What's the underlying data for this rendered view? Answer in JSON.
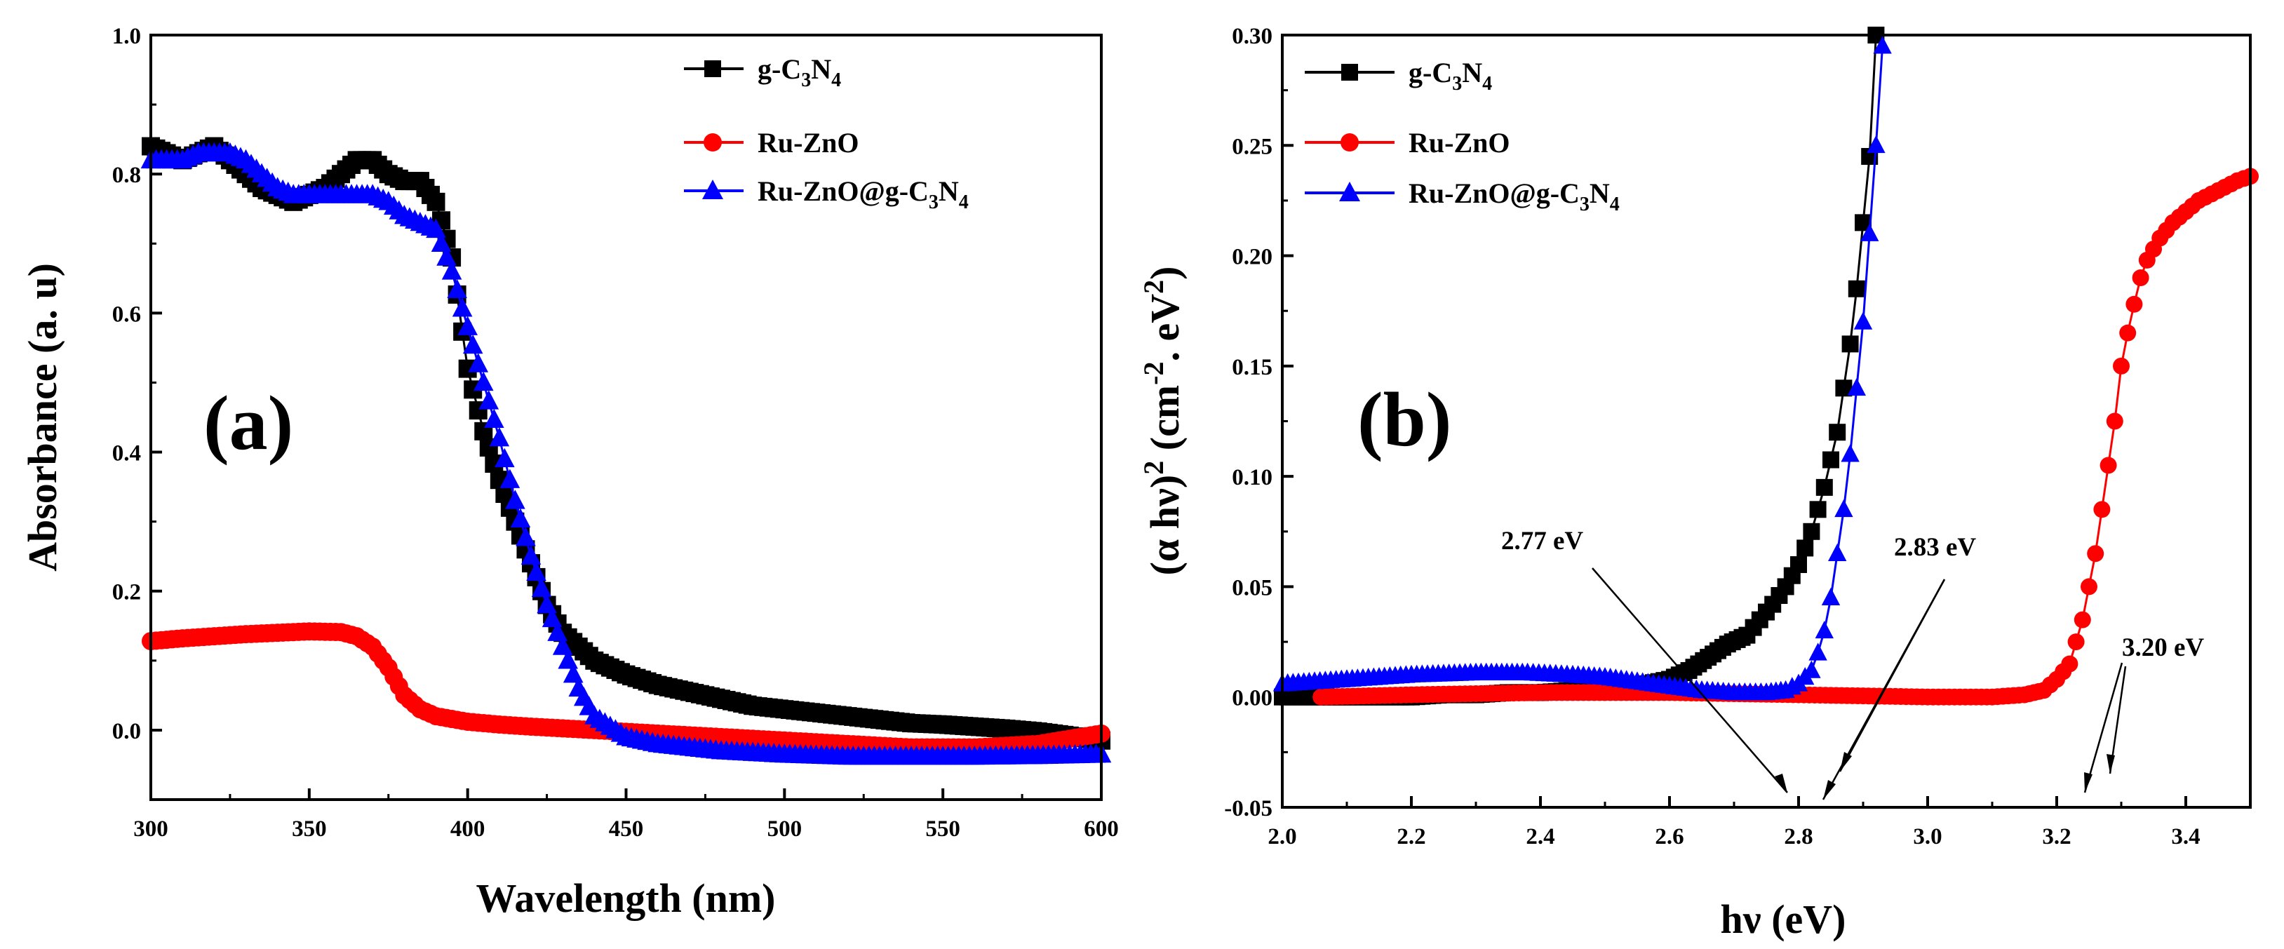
{
  "chart_data": [
    {
      "type": "scatter",
      "panel_label": "(a)",
      "xlabel": "Wavelength (nm)",
      "ylabel": "Absorbance (a. u)",
      "xlim": [
        300,
        600
      ],
      "ylim": [
        -0.1,
        1.0
      ],
      "xticks": [
        300,
        350,
        400,
        450,
        500,
        550,
        600
      ],
      "yticks": [
        -0.0001,
        0.2,
        0.4,
        0.6,
        0.8,
        1.0
      ],
      "ytick_labels": [
        "0.0",
        "0.2",
        "0.4",
        "0.6",
        "0.8",
        "1.0"
      ],
      "xtick_labels": [
        "300",
        "350",
        "400",
        "450",
        "500",
        "550",
        "600"
      ],
      "legend_position": "top-right",
      "series": [
        {
          "name": "g-C3N4",
          "legend": {
            "base": "g-C",
            "sub1": "3",
            "mid": "N",
            "sub2": "4"
          },
          "color": "#000000",
          "marker": "square",
          "x": [
            300,
            305,
            310,
            315,
            320,
            325,
            330,
            335,
            340,
            345,
            350,
            355,
            360,
            365,
            370,
            375,
            380,
            385,
            390,
            395,
            400,
            405,
            410,
            415,
            420,
            425,
            430,
            435,
            440,
            450,
            460,
            470,
            480,
            490,
            500,
            510,
            520,
            530,
            540,
            550,
            560,
            570,
            580,
            590,
            600
          ],
          "y": [
            0.84,
            0.83,
            0.82,
            0.83,
            0.84,
            0.82,
            0.8,
            0.78,
            0.77,
            0.76,
            0.77,
            0.78,
            0.8,
            0.82,
            0.82,
            0.8,
            0.79,
            0.79,
            0.76,
            0.68,
            0.52,
            0.43,
            0.36,
            0.3,
            0.24,
            0.18,
            0.14,
            0.12,
            0.1,
            0.08,
            0.065,
            0.055,
            0.045,
            0.035,
            0.03,
            0.025,
            0.02,
            0.015,
            0.01,
            0.008,
            0.005,
            0.002,
            -0.002,
            -0.008,
            -0.015
          ]
        },
        {
          "name": "Ru-ZnO",
          "legend": {
            "base": "Ru-ZnO",
            "sub1": "",
            "mid": "",
            "sub2": ""
          },
          "color": "#ff0000",
          "marker": "circle",
          "x": [
            300,
            310,
            320,
            330,
            340,
            350,
            360,
            365,
            370,
            375,
            380,
            385,
            390,
            400,
            410,
            420,
            440,
            460,
            480,
            500,
            520,
            540,
            560,
            580,
            600
          ],
          "y": [
            0.128,
            0.132,
            0.135,
            0.138,
            0.14,
            0.142,
            0.141,
            0.135,
            0.12,
            0.09,
            0.05,
            0.03,
            0.02,
            0.012,
            0.008,
            0.005,
            0.0,
            -0.005,
            -0.01,
            -0.015,
            -0.02,
            -0.025,
            -0.025,
            -0.02,
            -0.005
          ]
        },
        {
          "name": "Ru-ZnO@g-C3N4",
          "legend": {
            "base": "Ru-ZnO@g-C",
            "sub1": "3",
            "mid": "N",
            "sub2": "4"
          },
          "color": "#0000ff",
          "marker": "triangle",
          "x": [
            300,
            305,
            310,
            315,
            320,
            325,
            330,
            335,
            340,
            345,
            350,
            355,
            360,
            365,
            370,
            375,
            380,
            385,
            390,
            395,
            400,
            405,
            410,
            415,
            420,
            425,
            430,
            435,
            440,
            445,
            450,
            460,
            470,
            480,
            500,
            520,
            540,
            560,
            580,
            600
          ],
          "y": [
            0.82,
            0.82,
            0.82,
            0.83,
            0.83,
            0.83,
            0.82,
            0.8,
            0.78,
            0.77,
            0.77,
            0.77,
            0.77,
            0.77,
            0.77,
            0.76,
            0.74,
            0.73,
            0.72,
            0.66,
            0.58,
            0.5,
            0.42,
            0.33,
            0.25,
            0.18,
            0.12,
            0.06,
            0.02,
            0.005,
            -0.01,
            -0.02,
            -0.025,
            -0.03,
            -0.035,
            -0.038,
            -0.038,
            -0.038,
            -0.037,
            -0.035
          ]
        }
      ]
    },
    {
      "type": "scatter",
      "panel_label": "(b)",
      "xlabel": "hν (eV)",
      "ylabel": {
        "pre": "(α hν)",
        "sup1": "2",
        "mid": " (cm",
        "sup2": "-2",
        "mid2": ". eV",
        "sup3": "2",
        "post": ")"
      },
      "xlim": [
        2.0,
        3.5
      ],
      "ylim": [
        -0.05,
        0.3
      ],
      "xticks": [
        2.0,
        2.2,
        2.4,
        2.6,
        2.8,
        3.0,
        3.2,
        3.4
      ],
      "xtick_labels": [
        "2.0",
        "2.2",
        "2.4",
        "2.6",
        "2.8",
        "3.0",
        "3.2",
        "3.4"
      ],
      "yticks": [
        -0.05,
        0.0,
        0.05,
        0.1,
        0.15,
        0.2,
        0.25,
        0.3
      ],
      "ytick_labels": [
        "-0.05",
        "0.00",
        "0.05",
        "0.10",
        "0.15",
        "0.20",
        "0.25",
        "0.30"
      ],
      "legend_position": "top-left",
      "series": [
        {
          "name": "g-C3N4",
          "legend": {
            "base": "g-C",
            "sub1": "3",
            "mid": "N",
            "sub2": "4"
          },
          "color": "#000000",
          "marker": "square",
          "x": [
            2.0,
            2.05,
            2.1,
            2.15,
            2.2,
            2.25,
            2.3,
            2.35,
            2.4,
            2.45,
            2.5,
            2.55,
            2.6,
            2.63,
            2.66,
            2.69,
            2.72,
            2.74,
            2.76,
            2.78,
            2.8,
            2.82,
            2.84,
            2.86,
            2.87,
            2.88,
            2.89,
            2.9,
            2.91,
            2.92
          ],
          "y": [
            0.0,
            0.0,
            0.0,
            0.0,
            0.0,
            0.001,
            0.001,
            0.002,
            0.002,
            0.003,
            0.004,
            0.005,
            0.008,
            0.012,
            0.018,
            0.024,
            0.028,
            0.035,
            0.042,
            0.05,
            0.06,
            0.075,
            0.095,
            0.12,
            0.14,
            0.16,
            0.185,
            0.215,
            0.245,
            0.3
          ]
        },
        {
          "name": "Ru-ZnO",
          "legend": {
            "base": "Ru-ZnO",
            "sub1": "",
            "mid": "",
            "sub2": ""
          },
          "color": "#ff0000",
          "marker": "circle",
          "x": [
            2.06,
            2.2,
            2.4,
            2.6,
            2.8,
            3.0,
            3.1,
            3.15,
            3.18,
            3.2,
            3.22,
            3.23,
            3.24,
            3.25,
            3.26,
            3.27,
            3.28,
            3.29,
            3.3,
            3.31,
            3.32,
            3.33,
            3.34,
            3.36,
            3.38,
            3.4,
            3.42,
            3.44,
            3.46,
            3.48,
            3.5
          ],
          "y": [
            0.0,
            0.001,
            0.002,
            0.002,
            0.001,
            0.0,
            0.0,
            0.001,
            0.003,
            0.008,
            0.015,
            0.025,
            0.035,
            0.05,
            0.065,
            0.085,
            0.105,
            0.125,
            0.15,
            0.165,
            0.178,
            0.19,
            0.198,
            0.208,
            0.215,
            0.22,
            0.225,
            0.228,
            0.231,
            0.234,
            0.236
          ]
        },
        {
          "name": "Ru-ZnO@g-C3N4",
          "legend": {
            "base": "Ru-ZnO@g-C",
            "sub1": "3",
            "mid": "N",
            "sub2": "4"
          },
          "color": "#0000ff",
          "marker": "triangle",
          "x": [
            2.0,
            2.1,
            2.2,
            2.3,
            2.38,
            2.45,
            2.5,
            2.55,
            2.6,
            2.65,
            2.7,
            2.75,
            2.78,
            2.8,
            2.82,
            2.83,
            2.84,
            2.85,
            2.86,
            2.87,
            2.88,
            2.89,
            2.9,
            2.91,
            2.92,
            2.93
          ],
          "y": [
            0.006,
            0.008,
            0.01,
            0.011,
            0.011,
            0.01,
            0.009,
            0.007,
            0.005,
            0.003,
            0.002,
            0.002,
            0.003,
            0.006,
            0.012,
            0.02,
            0.03,
            0.045,
            0.065,
            0.085,
            0.11,
            0.14,
            0.17,
            0.21,
            0.25,
            0.295
          ]
        }
      ],
      "annotations": [
        {
          "text": "2.77 eV",
          "x": 2.77
        },
        {
          "text": "2.83 eV",
          "x": 2.83
        },
        {
          "text": "3.20 eV",
          "x": 3.2
        }
      ]
    }
  ]
}
